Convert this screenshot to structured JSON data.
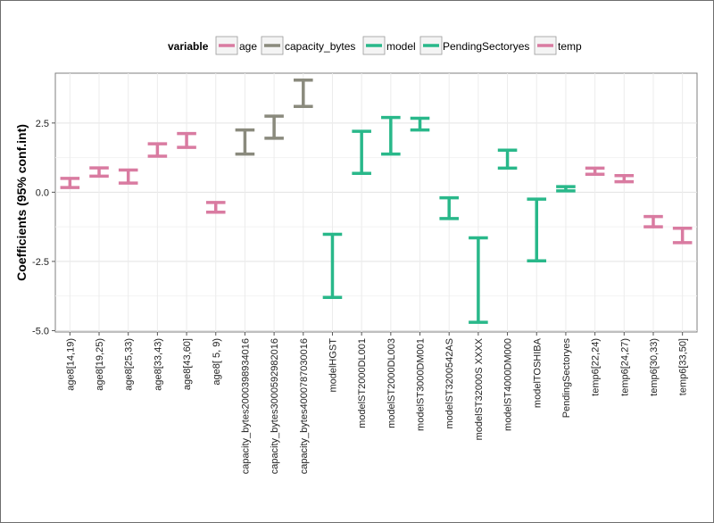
{
  "chart_data": {
    "type": "errorbar",
    "ylabel": "Coefficients (95% conf.int)",
    "ylim": [
      -5.05,
      4.3
    ],
    "yticks": [
      -5.0,
      -2.5,
      0.0,
      2.5
    ],
    "ytick_labels": [
      "-5.0",
      "-2.5",
      "0.0",
      "2.5"
    ],
    "grid": true,
    "legend": {
      "title": "variable",
      "placement": "top",
      "items": [
        {
          "name": "age",
          "color": "#d97ba1"
        },
        {
          "name": "capacity_bytes",
          "color": "#8a8a7d"
        },
        {
          "name": "model",
          "color": "#29b88a"
        },
        {
          "name": "PendingSectoryes",
          "color": "#29b88a"
        },
        {
          "name": "temp",
          "color": "#d97ba1"
        }
      ]
    },
    "categories": [
      "age8[14,19)",
      "age8[19,25)",
      "age8[25,33)",
      "age8[33,43)",
      "age8[43,60]",
      "age8[ 5, 9)",
      "capacity_bytes2000398934016",
      "capacity_bytes3000592982016",
      "capacity_bytes4000787030016",
      "modelHGST",
      "modelST2000DL001",
      "modelST2000DL003",
      "modelST3000DM001",
      "modelST3200542AS",
      "modelST32000S XXXX",
      "modelST4000DM000",
      "modelTOSHIBA",
      "PendingSectoryes",
      "temp6[22,24)",
      "temp6[24,27)",
      "temp6[30,33)",
      "temp6[33,50]"
    ],
    "series": [
      {
        "name": "age",
        "color": "#d97ba1",
        "lower": [
          0.17,
          0.58,
          0.33,
          1.3,
          1.62,
          -0.72
        ],
        "upper": [
          0.5,
          0.88,
          0.8,
          1.75,
          2.12,
          -0.37
        ],
        "index": [
          0,
          1,
          2,
          3,
          4,
          5
        ]
      },
      {
        "name": "capacity_bytes",
        "color": "#8a8a7d",
        "lower": [
          1.38,
          1.95,
          3.1
        ],
        "upper": [
          2.25,
          2.75,
          4.05
        ],
        "index": [
          6,
          7,
          8
        ]
      },
      {
        "name": "model",
        "color": "#29b88a",
        "lower": [
          -3.8,
          0.68,
          1.38,
          2.25,
          -0.95,
          -4.7,
          0.87,
          -2.48
        ],
        "upper": [
          -1.52,
          2.2,
          2.7,
          2.67,
          -0.2,
          -1.65,
          1.52,
          -0.25
        ],
        "index": [
          9,
          10,
          11,
          12,
          13,
          14,
          15,
          16
        ]
      },
      {
        "name": "PendingSectoryes",
        "color": "#29b88a",
        "lower": [
          0.05
        ],
        "upper": [
          0.2
        ],
        "index": [
          17
        ]
      },
      {
        "name": "temp",
        "color": "#d97ba1",
        "lower": [
          0.65,
          0.38,
          -1.25,
          -1.82
        ],
        "upper": [
          0.87,
          0.6,
          -0.88,
          -1.3
        ],
        "index": [
          18,
          19,
          20,
          21
        ]
      }
    ]
  }
}
